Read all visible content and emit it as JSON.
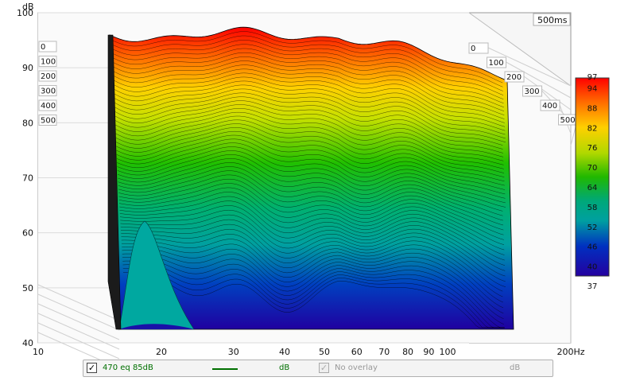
{
  "chart_data": {
    "type": "waterfall-3d",
    "yaxis": {
      "unit": "dB",
      "ticks": [
        "100",
        "90",
        "80",
        "70",
        "60",
        "50",
        "40"
      ],
      "range": [
        40,
        100
      ]
    },
    "xaxis": {
      "ticks": [
        "10",
        "20",
        "30",
        "40",
        "50",
        "60",
        "70",
        "80",
        "90",
        "100",
        "200Hz"
      ],
      "range": [
        10,
        200
      ]
    },
    "time_axis": {
      "ticks": [
        "0",
        "100",
        "200",
        "300",
        "400",
        "500"
      ],
      "unit": "ms",
      "max_label": "500ms"
    },
    "colorbar": {
      "ticks": [
        "97",
        "94",
        "88",
        "82",
        "76",
        "70",
        "64",
        "58",
        "52",
        "46",
        "40",
        "37"
      ],
      "range": [
        37,
        97
      ]
    },
    "palette": {
      "low": "#1a00a0",
      "mid": "#00a800",
      "high": "#ff0000"
    }
  },
  "legend": {
    "item1": {
      "checked": "✓",
      "label": "470 eq 85dB",
      "unit": "dB",
      "color": "#007000"
    },
    "item2": {
      "checked": "✓",
      "label": "No overlay",
      "unit": "dB"
    }
  }
}
